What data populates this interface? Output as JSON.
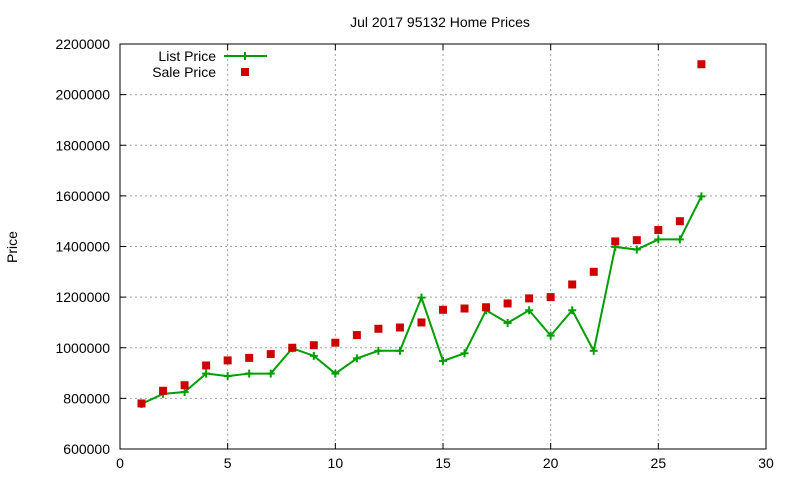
{
  "chart_data": {
    "type": "line",
    "title": "Jul 2017 95132 Home Prices",
    "xlabel": "",
    "ylabel": "Price",
    "xlim": [
      0,
      30
    ],
    "ylim": [
      600000,
      2200000
    ],
    "xticks": [
      0,
      5,
      10,
      15,
      20,
      25,
      30
    ],
    "yticks": [
      600000,
      800000,
      1000000,
      1200000,
      1400000,
      1600000,
      1800000,
      2000000,
      2200000
    ],
    "grid": true,
    "legend_position": "top-left",
    "series": [
      {
        "name": "List Price",
        "style": "line-with-plus-markers",
        "color": "#009e00",
        "x": [
          1,
          2,
          3,
          4,
          5,
          6,
          7,
          8,
          9,
          10,
          11,
          12,
          13,
          14,
          15,
          16,
          17,
          18,
          19,
          20,
          21,
          22,
          23,
          24,
          25,
          26,
          27
        ],
        "y": [
          778000,
          818000,
          825000,
          898000,
          888000,
          898000,
          898000,
          998000,
          968000,
          898000,
          958000,
          988000,
          988000,
          1198000,
          948000,
          978000,
          1148000,
          1098000,
          1148000,
          1048000,
          1148000,
          988000,
          1398000,
          1388000,
          1428000,
          1428000,
          1598000
        ]
      },
      {
        "name": "Sale Price",
        "style": "square-markers",
        "color": "#cc0000",
        "x": [
          1,
          2,
          3,
          4,
          5,
          6,
          7,
          8,
          9,
          10,
          11,
          12,
          13,
          14,
          15,
          16,
          17,
          18,
          19,
          20,
          21,
          22,
          23,
          24,
          25,
          26,
          27
        ],
        "y": [
          780000,
          830000,
          852000,
          930000,
          950000,
          960000,
          975000,
          1000000,
          1010000,
          1020000,
          1050000,
          1075000,
          1080000,
          1100000,
          1150000,
          1155000,
          1160000,
          1175000,
          1195000,
          1200000,
          1250000,
          1300000,
          1420000,
          1425000,
          1465000,
          1500000,
          2120000
        ]
      }
    ]
  }
}
